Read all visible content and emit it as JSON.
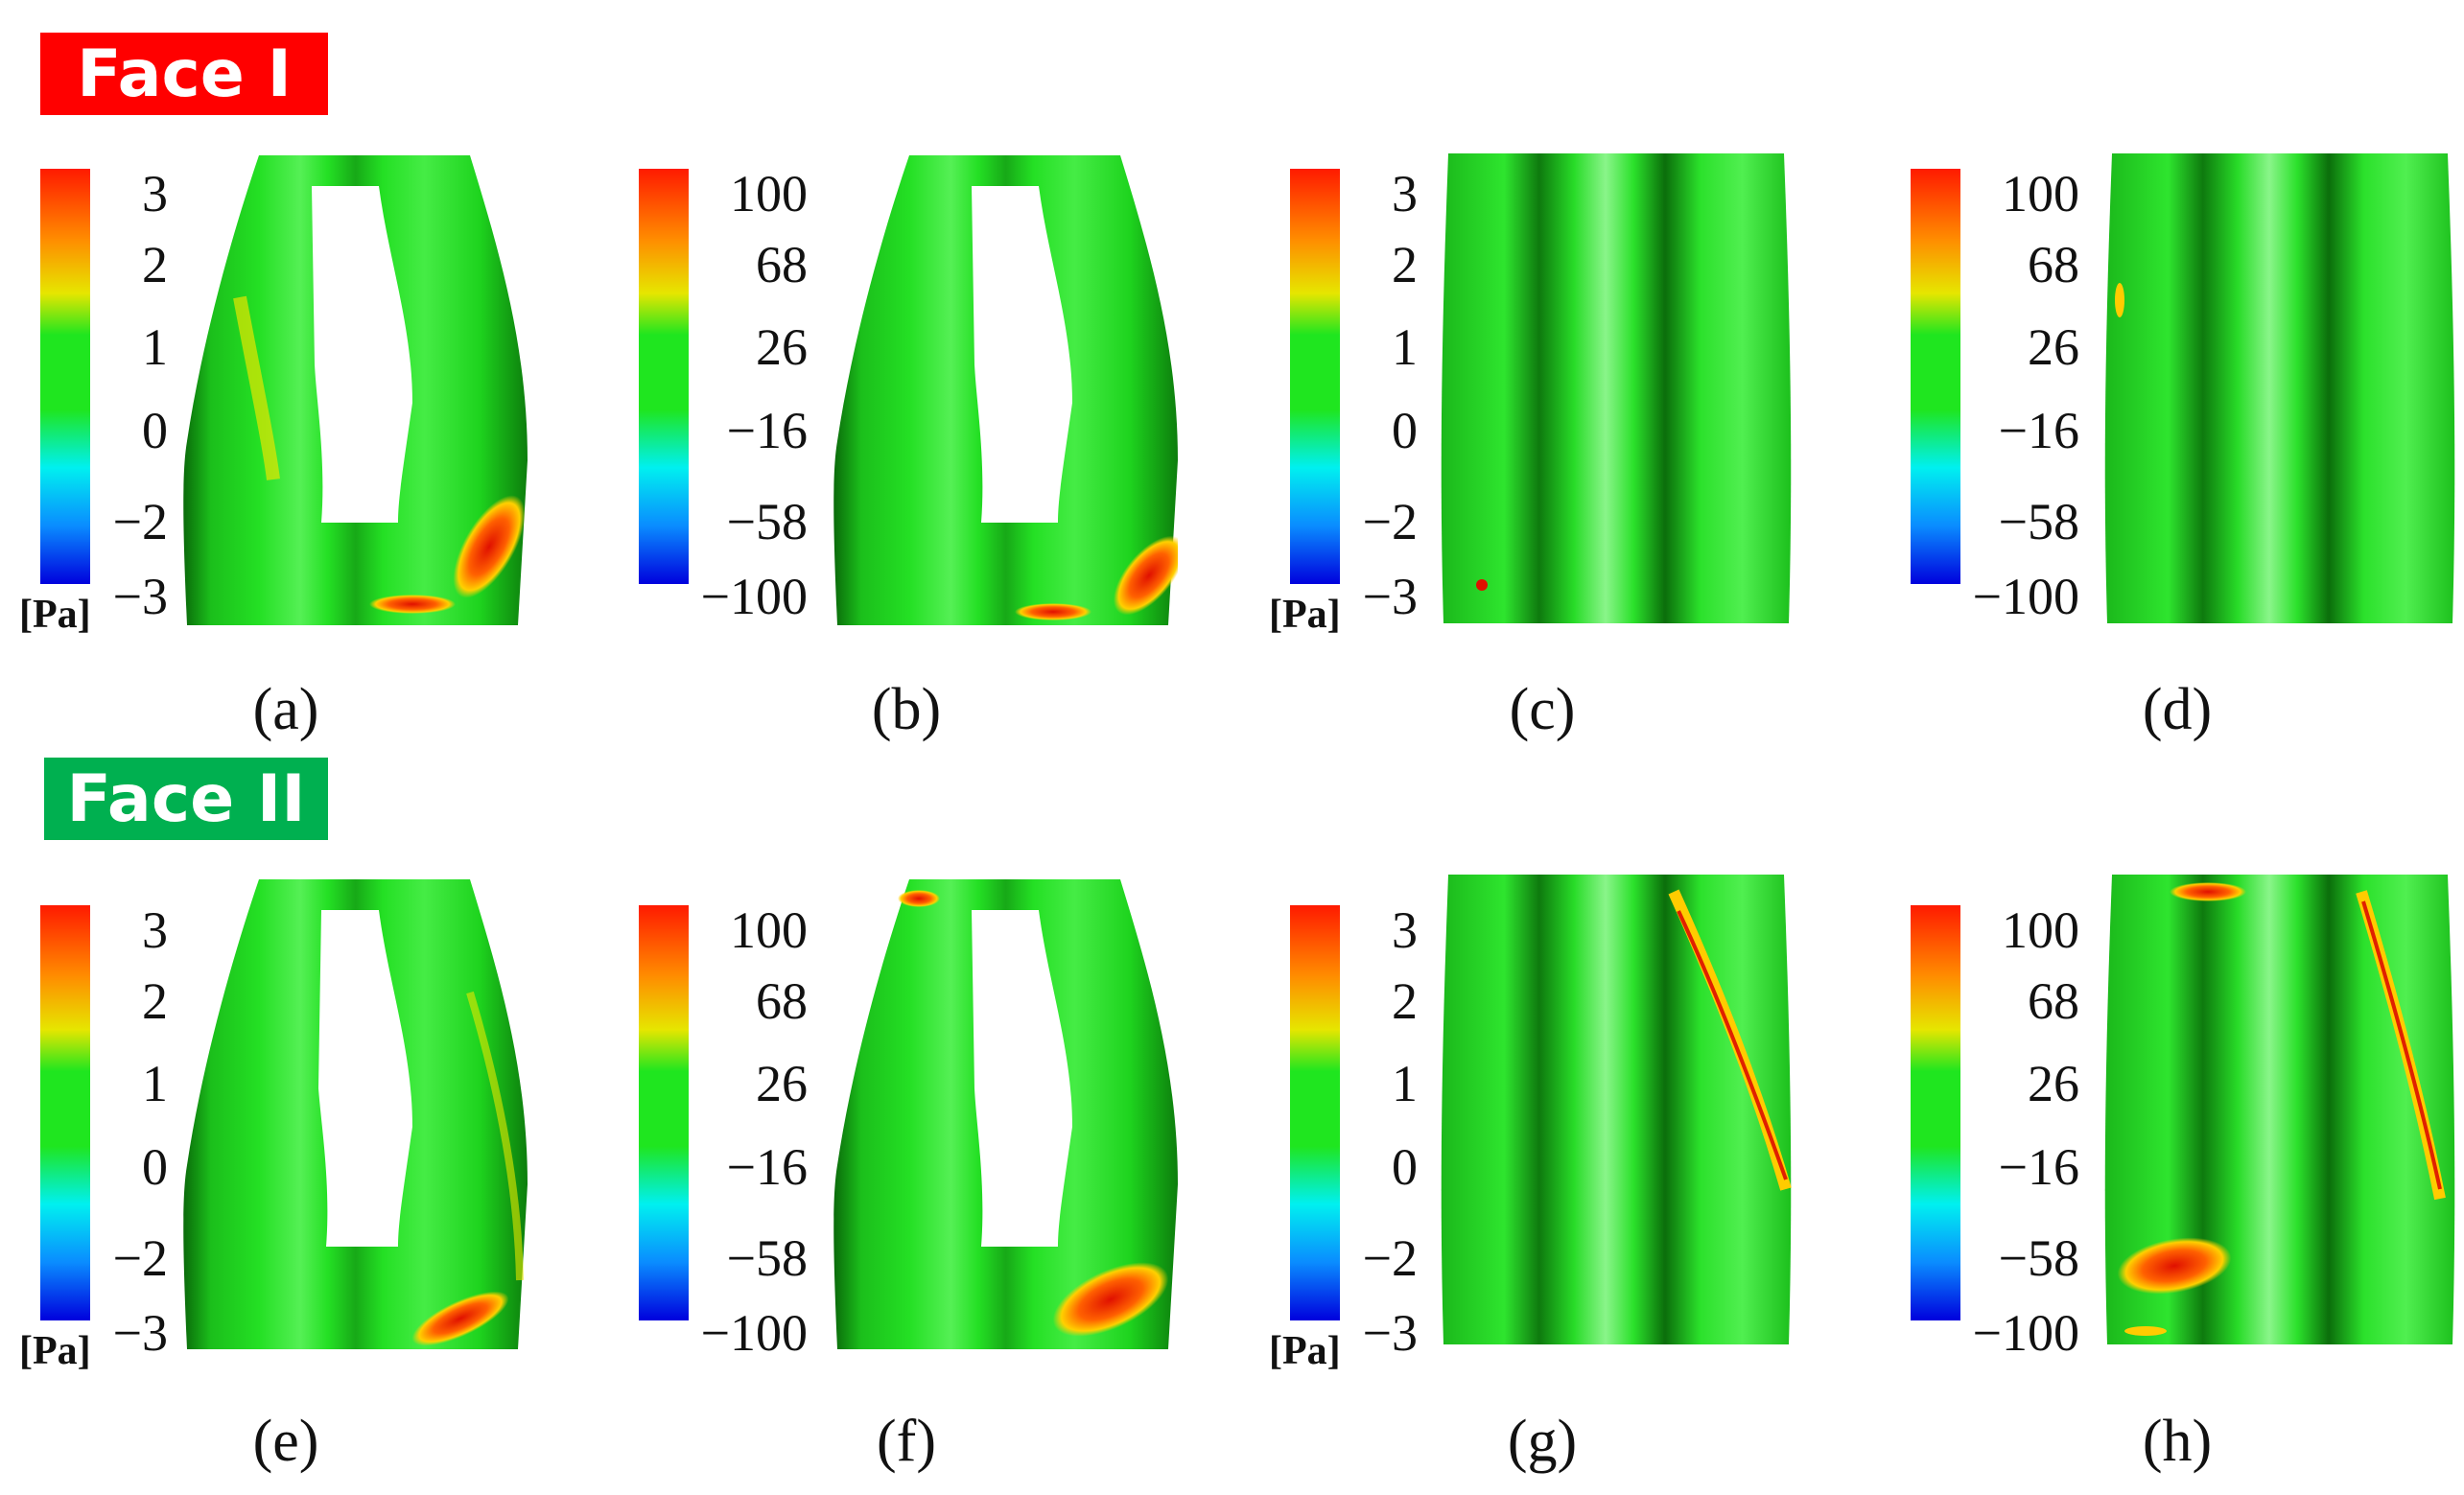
{
  "face_labels": {
    "face1": "Face I",
    "face2": "Face II"
  },
  "colors": {
    "face1_badge": "#ff0000",
    "face2_badge": "#00b050",
    "surface_green": "#20dd20"
  },
  "colorbar_small": {
    "ticks": [
      "3",
      "2",
      "1",
      "0",
      "−2",
      "−3"
    ],
    "unit": "[Pa]"
  },
  "colorbar_large": {
    "ticks": [
      "100",
      "68",
      "26",
      "−16",
      "−58",
      "−100"
    ]
  },
  "captions": [
    "(a)",
    "(b)",
    "(c)",
    "(d)",
    "(e)",
    "(f)",
    "(g)",
    "(h)"
  ]
}
